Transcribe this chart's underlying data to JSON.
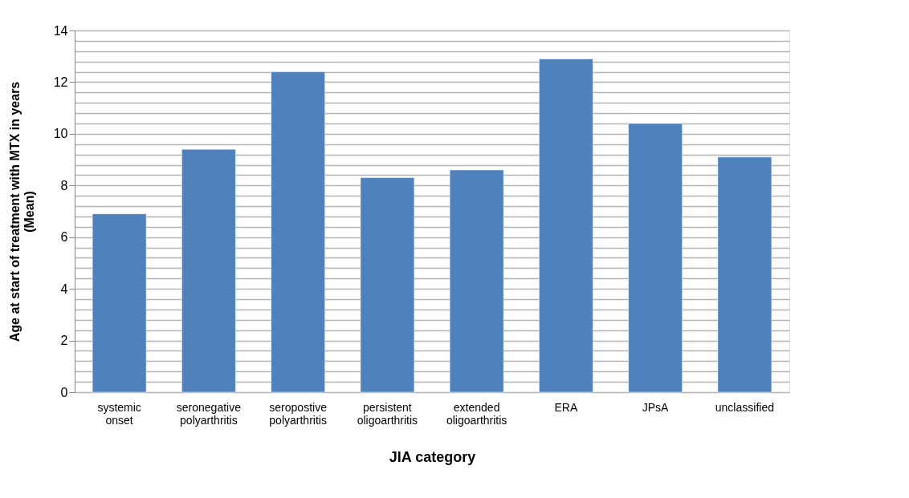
{
  "chart_data": {
    "type": "bar",
    "xlabel": "JIA category",
    "ylabel": "Age at start of treatment with MTX in years (Mean)",
    "categories": [
      "systemic onset",
      "seronegative polyarthritis",
      "seropostive polyarthritis",
      "persistent oligoarthritis",
      "extended oligoarthritis",
      "ERA",
      "JPsA",
      "unclassified"
    ],
    "values": [
      6.9,
      9.4,
      12.4,
      8.3,
      8.6,
      12.9,
      10.4,
      9.1
    ],
    "color": "#4f81bd",
    "ylim": [
      0,
      14
    ],
    "yticks": [
      0,
      {
        "value": 0.4,
        "label": null
      },
      {
        "value": 0.8,
        "label": null
      },
      {
        "value": 1.2,
        "label": null
      },
      {
        "value": 1.6,
        "label": null
      },
      2,
      {
        "value": 2.4,
        "label": null
      },
      {
        "value": 2.8,
        "label": null
      },
      {
        "value": 3.2,
        "label": null
      },
      {
        "value": 3.6,
        "label": null
      },
      4,
      {
        "value": 4.4,
        "label": null
      },
      {
        "value": 4.8,
        "label": null
      },
      {
        "value": 5.2,
        "label": null
      },
      {
        "value": 5.6,
        "label": null
      },
      6,
      {
        "value": 6.4,
        "label": null
      },
      {
        "value": 6.8,
        "label": null
      },
      {
        "value": 7.2,
        "label": null
      },
      {
        "value": 7.6,
        "label": null
      },
      8,
      {
        "value": 8.4,
        "label": null
      },
      {
        "value": 8.8,
        "label": null
      },
      {
        "value": 9.2,
        "label": null
      },
      {
        "value": 9.6,
        "label": null
      },
      10,
      {
        "value": 10.4,
        "label": null
      },
      {
        "value": 10.8,
        "label": null
      },
      {
        "value": 11.2,
        "label": null
      },
      {
        "value": 11.6,
        "label": null
      },
      12,
      {
        "value": 12.4,
        "label": null
      },
      {
        "value": 12.8,
        "label": null
      },
      {
        "value": 13.2,
        "label": null
      },
      {
        "value": 13.6,
        "label": null
      },
      14
    ],
    "grid": "y"
  }
}
